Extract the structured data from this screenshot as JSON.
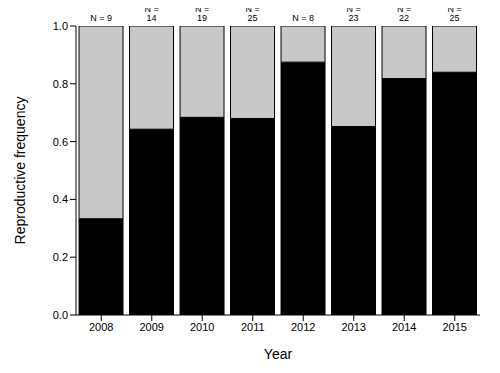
{
  "chart_data": {
    "type": "bar",
    "stacked": true,
    "x_label": "Year",
    "y_label": "Reproductive frequency",
    "categories": [
      "2008",
      "2009",
      "2010",
      "2011",
      "2012",
      "2013",
      "2014",
      "2015"
    ],
    "bar_top_labels": [
      "N = 9",
      "N = 14",
      "N = 19",
      "N = 25",
      "N = 8",
      "N = 23",
      "N = 22",
      "N = 25"
    ],
    "series": [
      {
        "color": "#000000",
        "values": [
          0.333,
          0.643,
          0.684,
          0.68,
          0.875,
          0.652,
          0.818,
          0.84
        ]
      },
      {
        "color": "#c8c8c8",
        "values": [
          0.667,
          0.357,
          0.316,
          0.32,
          0.125,
          0.348,
          0.182,
          0.16
        ]
      }
    ],
    "ylim": [
      0,
      1
    ],
    "yticks": [
      {
        "value": 0,
        "label": "0.0"
      },
      0.2,
      0.4,
      0.6,
      0.8,
      {
        "value": 1,
        "label": "1.0"
      }
    ]
  }
}
